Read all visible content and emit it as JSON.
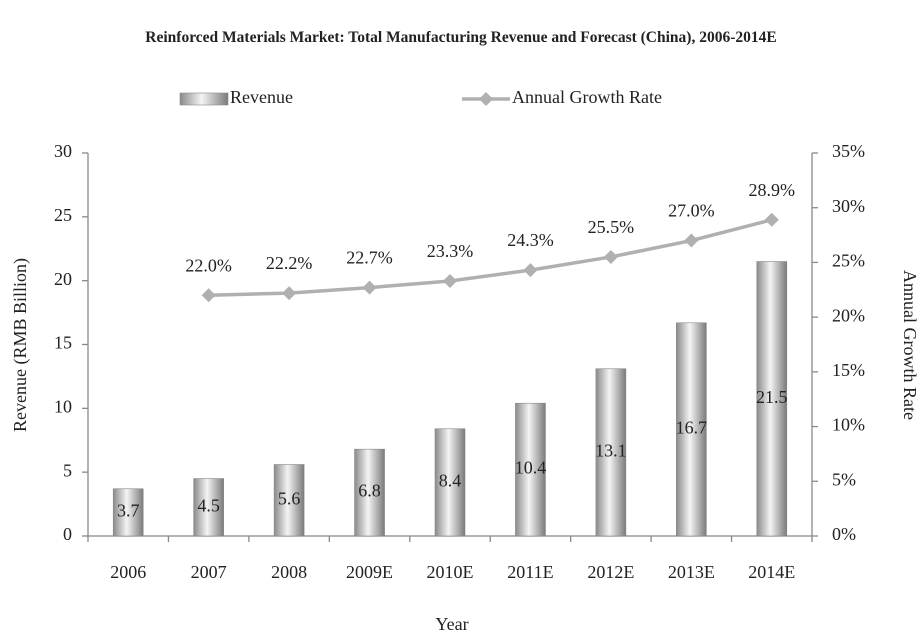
{
  "chart_data": {
    "type": "bar",
    "title": "Reinforced Materials Market: Total Manufacturing Revenue and Forecast (China), 2006-2014E",
    "x_label": "Year",
    "y_label": "Revenue (RMB Billion)",
    "y2_label": "Annual Growth Rate",
    "categories": [
      "2006",
      "2007",
      "2008",
      "2009E",
      "2010E",
      "2011E",
      "2012E",
      "2013E",
      "2014E"
    ],
    "series": [
      {
        "name": "Revenue",
        "type": "bar",
        "color": "#9a9a9a",
        "values": [
          3.7,
          4.5,
          5.6,
          6.8,
          8.4,
          10.4,
          13.1,
          16.7,
          21.5
        ]
      },
      {
        "name": "Annual Growth Rate",
        "type": "line",
        "axis": "y2",
        "color": "#b0b0b0",
        "values": [
          null,
          22.0,
          22.2,
          22.7,
          23.3,
          24.3,
          25.5,
          27.0,
          28.9
        ],
        "value_labels": [
          null,
          "22.0%",
          "22.2%",
          "22.7%",
          "23.3%",
          "24.3%",
          "25.5%",
          "27.0%",
          "28.9%"
        ]
      }
    ],
    "ylim": [
      0,
      30
    ],
    "yticks": [
      0,
      5,
      10,
      15,
      20,
      25,
      30
    ],
    "y2lim": [
      0,
      35
    ],
    "y2ticks": [
      {
        "value": 0,
        "label": "0%"
      },
      {
        "value": 5,
        "label": "5%"
      },
      {
        "value": 10,
        "label": "10%"
      },
      {
        "value": 15,
        "label": "15%"
      },
      {
        "value": 20,
        "label": "20%"
      },
      {
        "value": 25,
        "label": "25%"
      },
      {
        "value": 30,
        "label": "30%"
      },
      {
        "value": 35,
        "label": "35%"
      }
    ],
    "grid": false,
    "legend": "top"
  }
}
